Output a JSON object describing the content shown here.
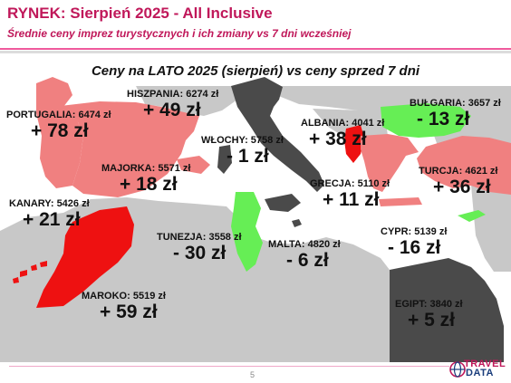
{
  "header": {
    "title": "RYNEK: Sierpień 2025 - All Inclusive",
    "subtitle": "Średnie ceny imprez turystycznych i ich zmiany vs 7 dni wcześniej"
  },
  "map": {
    "heading": "Ceny na LATO 2025 (sierpień) vs ceny sprzed 7 dni",
    "colors": {
      "sea": "#ffffff",
      "land": "#c8c8c8",
      "strong_increase": "#ee1111",
      "moderate_increase": "#f08080",
      "decrease": "#66ee55",
      "small_change": "#4a4a4a"
    },
    "destinations": [
      {
        "id": "portugalia",
        "name": "PORTUGALIA:",
        "price": "6474 zł",
        "change": "+ 78 zł",
        "fill": "moderate_increase"
      },
      {
        "id": "hiszpania",
        "name": "HISZPANIA:",
        "price": "6274 zł",
        "change": "+ 49 zł",
        "fill": "moderate_increase"
      },
      {
        "id": "wlochy",
        "name": "WŁOCHY:",
        "price": "5758 zł",
        "change": "- 1 zł",
        "fill": "small_change"
      },
      {
        "id": "albania",
        "name": "ALBANIA:",
        "price": "4041 zł",
        "change": "+ 38 zł",
        "fill": "strong_increase"
      },
      {
        "id": "bulgaria",
        "name": "BUŁGARIA:",
        "price": "3657 zł",
        "change": "- 13 zł",
        "fill": "decrease"
      },
      {
        "id": "majorka",
        "name": "MAJORKA:",
        "price": "5571 zł",
        "change": "+ 18 zł",
        "fill": "moderate_increase"
      },
      {
        "id": "turcja",
        "name": "TURCJA:",
        "price": "4621 zł",
        "change": "+ 36 zł",
        "fill": "moderate_increase"
      },
      {
        "id": "grecja",
        "name": "GRECJA:",
        "price": "5110 zł",
        "change": "+ 11 zł",
        "fill": "moderate_increase"
      },
      {
        "id": "kanary",
        "name": "KANARY:",
        "price": "5426 zł",
        "change": "+ 21 zł",
        "fill": "strong_increase"
      },
      {
        "id": "tunezja",
        "name": "TUNEZJA:",
        "price": "3558 zł",
        "change": "- 30 zł",
        "fill": "decrease"
      },
      {
        "id": "malta",
        "name": "MALTA:",
        "price": "4820 zł",
        "change": "- 6 zł",
        "fill": "small_change"
      },
      {
        "id": "cypr",
        "name": "CYPR:",
        "price": "5139 zł",
        "change": "- 16 zł",
        "fill": "decrease"
      },
      {
        "id": "maroko",
        "name": "MAROKO:",
        "price": "5519 zł",
        "change": "+ 59 zł",
        "fill": "strong_increase"
      },
      {
        "id": "egipt",
        "name": "EGIPT:",
        "price": "3840 zł",
        "change": "+ 5 zł",
        "fill": "small_change"
      }
    ]
  },
  "footer": {
    "page_number": "5",
    "logo_line1": "TRAVEL",
    "logo_line2": "DATA"
  }
}
